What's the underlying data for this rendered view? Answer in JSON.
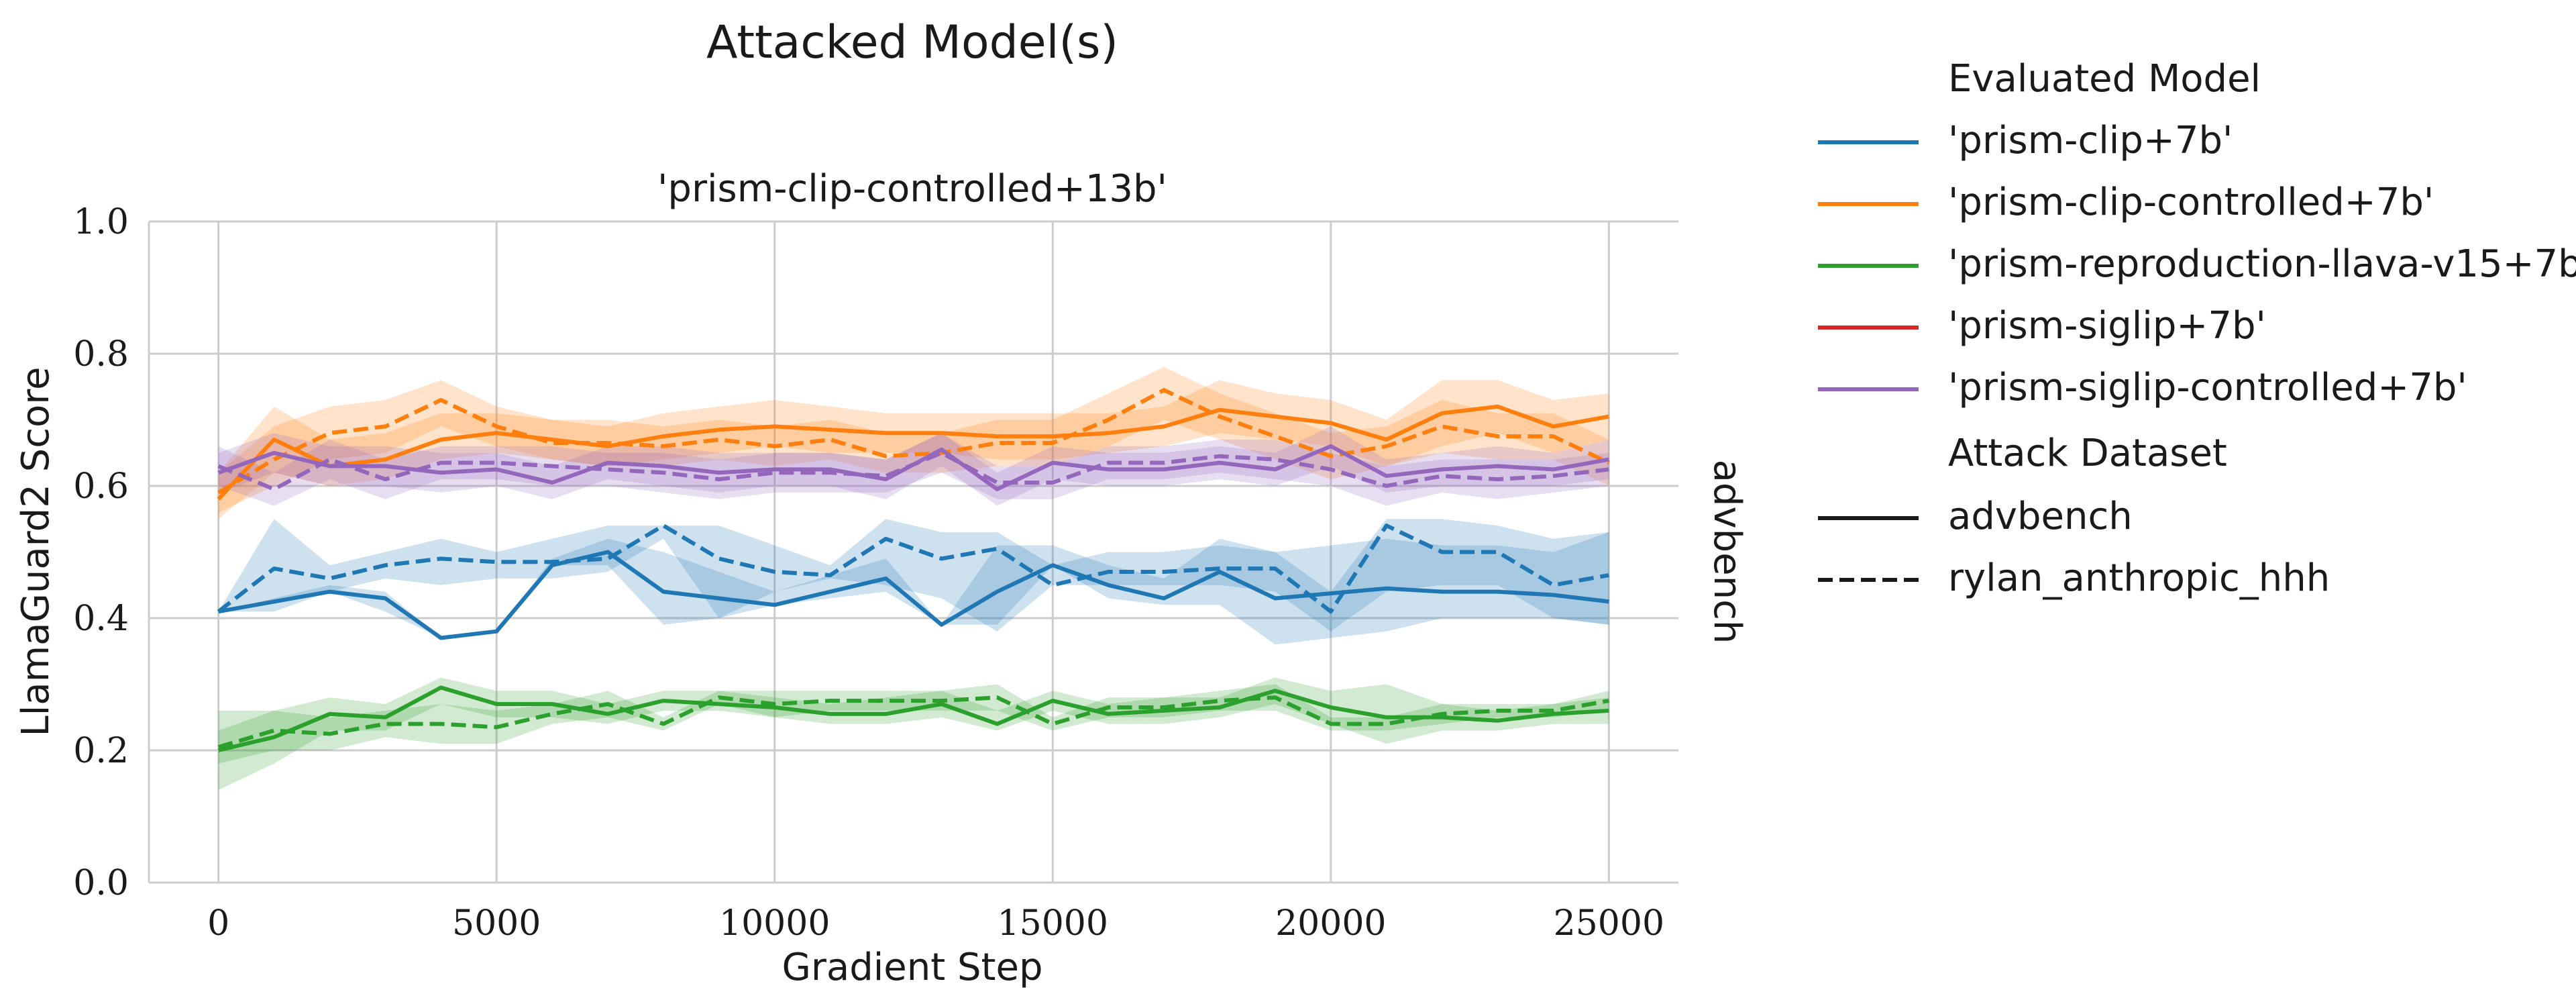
{
  "figure": {
    "suptitle": "Attacked Model(s)",
    "facet_title": "'prism-clip-controlled+13b'",
    "row_label": "advbench"
  },
  "legend": {
    "hue_title": "Evaluated Model",
    "style_title": "Attack Dataset",
    "hue_entries": [
      {
        "label": "'prism-clip+7b'",
        "color": "#1f77b4"
      },
      {
        "label": "'prism-clip-controlled+7b'",
        "color": "#ff7f0e"
      },
      {
        "label": "'prism-reproduction-llava-v15+7b'",
        "color": "#2ca02c"
      },
      {
        "label": "'prism-siglip+7b'",
        "color": "#d62728"
      },
      {
        "label": "'prism-siglip-controlled+7b'",
        "color": "#9467bd"
      }
    ],
    "style_entries": [
      {
        "label": "advbench",
        "dash": "solid"
      },
      {
        "label": "rylan_anthropic_hhh",
        "dash": "dashed"
      }
    ]
  },
  "chart_data": {
    "type": "line",
    "title": "'prism-clip-controlled+13b'",
    "xlabel": "Gradient Step",
    "ylabel": "LlamaGuard2 Score",
    "xlim": [
      -1250,
      26250
    ],
    "ylim": [
      0.0,
      1.0
    ],
    "xticks": [
      0,
      5000,
      10000,
      15000,
      20000,
      25000
    ],
    "yticks": [
      0.0,
      0.2,
      0.4,
      0.6,
      0.8,
      1.0
    ],
    "xtick_labels": [
      "0",
      "5000",
      "10000",
      "15000",
      "20000",
      "25000"
    ],
    "ytick_labels": [
      "0.0",
      "0.2",
      "0.4",
      "0.6",
      "0.8",
      "1.0"
    ],
    "grid": true,
    "legend_position": "right",
    "series": [
      {
        "name": "'prism-clip+7b'",
        "attack_dataset": "advbench",
        "color": "#1f77b4",
        "dash": "solid",
        "x": [
          0,
          2000,
          3000,
          4000,
          5000,
          6000,
          7000,
          8000,
          9000,
          10000,
          12000,
          13000,
          14000,
          15000,
          16000,
          17000,
          18000,
          19000,
          21000,
          22000,
          23000,
          24000,
          25000
        ],
        "y": [
          0.41,
          0.44,
          0.43,
          0.37,
          0.38,
          0.48,
          0.5,
          0.44,
          0.43,
          0.42,
          0.46,
          0.39,
          0.44,
          0.48,
          0.45,
          0.43,
          0.47,
          0.43,
          0.445,
          0.44,
          0.44,
          0.435,
          0.425
        ],
        "lower": [
          0.41,
          0.44,
          0.41,
          0.37,
          0.38,
          0.48,
          0.48,
          0.39,
          0.4,
          0.42,
          0.44,
          0.39,
          0.39,
          0.48,
          0.43,
          0.42,
          0.42,
          0.36,
          0.38,
          0.4,
          0.4,
          0.4,
          0.39
        ],
        "upper": [
          0.41,
          0.45,
          0.44,
          0.37,
          0.38,
          0.49,
          0.52,
          0.5,
          0.47,
          0.44,
          0.49,
          0.39,
          0.51,
          0.51,
          0.48,
          0.46,
          0.52,
          0.5,
          0.52,
          0.51,
          0.51,
          0.5,
          0.53
        ]
      },
      {
        "name": "'prism-clip+7b'",
        "attack_dataset": "rylan_anthropic_hhh",
        "color": "#1f77b4",
        "dash": "dashed",
        "x": [
          0,
          1000,
          2000,
          3000,
          4000,
          5000,
          6000,
          7000,
          8000,
          9000,
          10000,
          11000,
          12000,
          13000,
          14000,
          15000,
          16000,
          17000,
          18000,
          19000,
          20000,
          21000,
          22000,
          23000,
          24000,
          25000
        ],
        "y": [
          0.41,
          0.475,
          0.46,
          0.48,
          0.49,
          0.485,
          0.485,
          0.49,
          0.54,
          0.49,
          0.47,
          0.465,
          0.52,
          0.49,
          0.505,
          0.45,
          0.47,
          0.47,
          0.475,
          0.475,
          0.41,
          0.54,
          0.5,
          0.5,
          0.45,
          0.465
        ],
        "lower": [
          0.41,
          0.41,
          0.44,
          0.46,
          0.45,
          0.46,
          0.46,
          0.47,
          0.52,
          0.4,
          0.44,
          0.46,
          0.45,
          0.43,
          0.38,
          0.45,
          0.45,
          0.45,
          0.45,
          0.44,
          0.38,
          0.44,
          0.45,
          0.45,
          0.4,
          0.39
        ],
        "upper": [
          0.41,
          0.55,
          0.48,
          0.5,
          0.52,
          0.5,
          0.52,
          0.54,
          0.54,
          0.54,
          0.51,
          0.48,
          0.55,
          0.53,
          0.53,
          0.48,
          0.5,
          0.5,
          0.51,
          0.5,
          0.44,
          0.55,
          0.55,
          0.54,
          0.52,
          0.53
        ]
      },
      {
        "name": "'prism-clip-controlled+7b'",
        "attack_dataset": "advbench",
        "color": "#ff7f0e",
        "dash": "solid",
        "x": [
          0,
          1000,
          2000,
          3000,
          4000,
          5000,
          6000,
          7000,
          8000,
          9000,
          10000,
          11000,
          12000,
          13000,
          14000,
          15000,
          16000,
          17000,
          18000,
          19000,
          20000,
          21000,
          22000,
          23000,
          24000,
          25000
        ],
        "y": [
          0.58,
          0.67,
          0.63,
          0.64,
          0.67,
          0.68,
          0.67,
          0.66,
          0.675,
          0.685,
          0.69,
          0.685,
          0.68,
          0.68,
          0.675,
          0.675,
          0.68,
          0.69,
          0.715,
          0.705,
          0.695,
          0.67,
          0.71,
          0.72,
          0.69,
          0.705
        ],
        "lower": [
          0.55,
          0.62,
          0.6,
          0.61,
          0.64,
          0.65,
          0.64,
          0.63,
          0.64,
          0.65,
          0.66,
          0.65,
          0.65,
          0.65,
          0.64,
          0.64,
          0.65,
          0.66,
          0.68,
          0.67,
          0.66,
          0.63,
          0.66,
          0.68,
          0.65,
          0.67
        ],
        "upper": [
          0.62,
          0.72,
          0.67,
          0.68,
          0.71,
          0.71,
          0.7,
          0.69,
          0.71,
          0.72,
          0.73,
          0.72,
          0.71,
          0.71,
          0.71,
          0.71,
          0.71,
          0.72,
          0.76,
          0.74,
          0.73,
          0.7,
          0.76,
          0.76,
          0.73,
          0.74
        ]
      },
      {
        "name": "'prism-clip-controlled+7b'",
        "attack_dataset": "rylan_anthropic_hhh",
        "color": "#ff7f0e",
        "dash": "dashed",
        "x": [
          0,
          1000,
          2000,
          3000,
          4000,
          5000,
          6000,
          7000,
          8000,
          9000,
          10000,
          11000,
          12000,
          13000,
          14000,
          15000,
          16000,
          17000,
          18000,
          19000,
          20000,
          21000,
          22000,
          23000,
          24000,
          25000
        ],
        "y": [
          0.59,
          0.64,
          0.68,
          0.69,
          0.73,
          0.69,
          0.665,
          0.665,
          0.66,
          0.67,
          0.66,
          0.67,
          0.645,
          0.65,
          0.665,
          0.665,
          0.7,
          0.745,
          0.705,
          0.675,
          0.645,
          0.66,
          0.69,
          0.675,
          0.675,
          0.635
        ],
        "lower": [
          0.56,
          0.6,
          0.64,
          0.65,
          0.69,
          0.66,
          0.64,
          0.63,
          0.63,
          0.64,
          0.63,
          0.64,
          0.62,
          0.62,
          0.63,
          0.63,
          0.66,
          0.7,
          0.67,
          0.64,
          0.61,
          0.63,
          0.65,
          0.64,
          0.64,
          0.6
        ],
        "upper": [
          0.62,
          0.69,
          0.72,
          0.73,
          0.76,
          0.72,
          0.7,
          0.7,
          0.69,
          0.7,
          0.69,
          0.7,
          0.68,
          0.68,
          0.7,
          0.7,
          0.74,
          0.78,
          0.74,
          0.71,
          0.68,
          0.69,
          0.73,
          0.71,
          0.71,
          0.67
        ]
      },
      {
        "name": "'prism-reproduction-llava-v15+7b'",
        "attack_dataset": "advbench",
        "color": "#2ca02c",
        "dash": "solid",
        "x": [
          0,
          1000,
          2000,
          3000,
          4000,
          5000,
          6000,
          7000,
          8000,
          9000,
          10000,
          11000,
          12000,
          13000,
          14000,
          15000,
          16000,
          17000,
          18000,
          19000,
          20000,
          21000,
          22000,
          23000,
          24000,
          25000
        ],
        "y": [
          0.2,
          0.22,
          0.255,
          0.25,
          0.295,
          0.27,
          0.27,
          0.255,
          0.275,
          0.27,
          0.265,
          0.255,
          0.255,
          0.27,
          0.24,
          0.275,
          0.255,
          0.26,
          0.265,
          0.29,
          0.265,
          0.25,
          0.25,
          0.245,
          0.255,
          0.26
        ],
        "lower": [
          0.14,
          0.18,
          0.23,
          0.23,
          0.27,
          0.25,
          0.25,
          0.24,
          0.26,
          0.26,
          0.25,
          0.24,
          0.24,
          0.25,
          0.23,
          0.26,
          0.24,
          0.24,
          0.25,
          0.27,
          0.24,
          0.21,
          0.23,
          0.23,
          0.24,
          0.24
        ],
        "upper": [
          0.26,
          0.26,
          0.28,
          0.27,
          0.31,
          0.29,
          0.29,
          0.27,
          0.29,
          0.29,
          0.28,
          0.27,
          0.28,
          0.29,
          0.26,
          0.29,
          0.27,
          0.28,
          0.28,
          0.31,
          0.29,
          0.3,
          0.27,
          0.26,
          0.27,
          0.28
        ]
      },
      {
        "name": "'prism-reproduction-llava-v15+7b'",
        "attack_dataset": "rylan_anthropic_hhh",
        "color": "#2ca02c",
        "dash": "dashed",
        "x": [
          0,
          1000,
          2000,
          3000,
          4000,
          5000,
          6000,
          7000,
          8000,
          9000,
          10000,
          11000,
          12000,
          13000,
          14000,
          15000,
          16000,
          17000,
          18000,
          19000,
          20000,
          21000,
          22000,
          23000,
          24000,
          25000
        ],
        "y": [
          0.205,
          0.23,
          0.225,
          0.24,
          0.24,
          0.235,
          0.255,
          0.27,
          0.24,
          0.28,
          0.27,
          0.275,
          0.275,
          0.275,
          0.28,
          0.24,
          0.265,
          0.265,
          0.275,
          0.28,
          0.24,
          0.24,
          0.255,
          0.26,
          0.26,
          0.275
        ],
        "lower": [
          0.18,
          0.2,
          0.2,
          0.22,
          0.21,
          0.21,
          0.24,
          0.25,
          0.23,
          0.27,
          0.25,
          0.26,
          0.26,
          0.26,
          0.26,
          0.23,
          0.25,
          0.25,
          0.26,
          0.26,
          0.23,
          0.23,
          0.24,
          0.25,
          0.25,
          0.26
        ],
        "upper": [
          0.23,
          0.26,
          0.25,
          0.26,
          0.27,
          0.26,
          0.27,
          0.29,
          0.25,
          0.29,
          0.29,
          0.29,
          0.29,
          0.29,
          0.3,
          0.25,
          0.28,
          0.28,
          0.29,
          0.3,
          0.25,
          0.25,
          0.27,
          0.27,
          0.27,
          0.29
        ]
      },
      {
        "name": "'prism-siglip-controlled+7b'",
        "attack_dataset": "advbench",
        "color": "#9467bd",
        "dash": "solid",
        "x": [
          0,
          1000,
          2000,
          3000,
          4000,
          5000,
          6000,
          7000,
          8000,
          9000,
          10000,
          11000,
          12000,
          13000,
          14000,
          15000,
          16000,
          17000,
          18000,
          19000,
          20000,
          21000,
          22000,
          23000,
          24000,
          25000
        ],
        "y": [
          0.62,
          0.65,
          0.63,
          0.63,
          0.62,
          0.625,
          0.605,
          0.635,
          0.63,
          0.62,
          0.625,
          0.625,
          0.61,
          0.655,
          0.595,
          0.635,
          0.625,
          0.625,
          0.635,
          0.625,
          0.66,
          0.615,
          0.625,
          0.63,
          0.625,
          0.64
        ],
        "lower": [
          0.59,
          0.62,
          0.6,
          0.6,
          0.59,
          0.6,
          0.58,
          0.61,
          0.6,
          0.59,
          0.6,
          0.6,
          0.58,
          0.63,
          0.57,
          0.61,
          0.6,
          0.6,
          0.61,
          0.6,
          0.63,
          0.59,
          0.6,
          0.6,
          0.6,
          0.61
        ],
        "upper": [
          0.65,
          0.68,
          0.66,
          0.66,
          0.65,
          0.65,
          0.63,
          0.66,
          0.66,
          0.65,
          0.65,
          0.65,
          0.64,
          0.68,
          0.62,
          0.66,
          0.65,
          0.65,
          0.66,
          0.65,
          0.69,
          0.64,
          0.65,
          0.66,
          0.65,
          0.67
        ]
      },
      {
        "name": "'prism-siglip-controlled+7b'",
        "attack_dataset": "rylan_anthropic_hhh",
        "color": "#9467bd",
        "dash": "dashed",
        "x": [
          0,
          1000,
          2000,
          3000,
          4000,
          5000,
          6000,
          7000,
          8000,
          9000,
          10000,
          11000,
          12000,
          13000,
          14000,
          15000,
          16000,
          17000,
          18000,
          19000,
          20000,
          21000,
          22000,
          23000,
          24000,
          25000
        ],
        "y": [
          0.63,
          0.595,
          0.64,
          0.61,
          0.635,
          0.635,
          0.63,
          0.625,
          0.62,
          0.61,
          0.62,
          0.62,
          0.615,
          0.65,
          0.605,
          0.605,
          0.635,
          0.635,
          0.645,
          0.64,
          0.625,
          0.6,
          0.615,
          0.61,
          0.615,
          0.625
        ],
        "lower": [
          0.6,
          0.57,
          0.61,
          0.58,
          0.61,
          0.61,
          0.6,
          0.6,
          0.59,
          0.58,
          0.59,
          0.59,
          0.59,
          0.62,
          0.58,
          0.58,
          0.61,
          0.61,
          0.62,
          0.61,
          0.6,
          0.57,
          0.59,
          0.58,
          0.59,
          0.6
        ],
        "upper": [
          0.66,
          0.62,
          0.67,
          0.64,
          0.66,
          0.66,
          0.66,
          0.65,
          0.65,
          0.64,
          0.65,
          0.65,
          0.64,
          0.68,
          0.63,
          0.63,
          0.66,
          0.66,
          0.67,
          0.67,
          0.65,
          0.63,
          0.64,
          0.64,
          0.64,
          0.65
        ]
      }
    ]
  }
}
